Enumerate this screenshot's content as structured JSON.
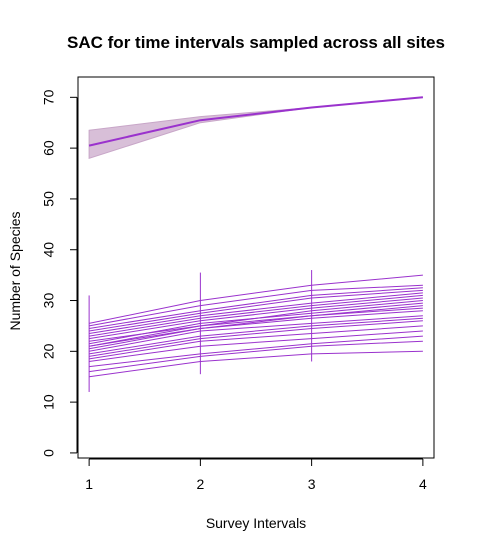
{
  "chart_data": {
    "type": "line",
    "title": "SAC for time intervals sampled across all sites",
    "xlabel": "Survey Intervals",
    "ylabel": "Number of Species",
    "xlim": [
      0.9,
      4.1
    ],
    "ylim": [
      -1,
      74
    ],
    "x": [
      1,
      2,
      3,
      4
    ],
    "x_ticks": [
      "1",
      "2",
      "3",
      "4"
    ],
    "y_ticks": [
      "0",
      "10",
      "20",
      "30",
      "40",
      "50",
      "60",
      "70"
    ],
    "y_tick_values": [
      0,
      10,
      20,
      30,
      40,
      50,
      60,
      70
    ],
    "grid": false,
    "colors": {
      "line": "#9A32CD",
      "band": "#D8BFD8",
      "band_edge": "#C8A6C8"
    },
    "main_series": {
      "values": [
        60.5,
        65.5,
        68,
        70
      ],
      "ci_lower": [
        58,
        65,
        68,
        70
      ],
      "ci_upper": [
        63.5,
        66.2,
        68,
        70
      ]
    },
    "site_series": [
      [
        15,
        18,
        19.5,
        20
      ],
      [
        16,
        19,
        21,
        22
      ],
      [
        17,
        19.5,
        21.5,
        23
      ],
      [
        18,
        21,
        22.5,
        24
      ],
      [
        18.5,
        22,
        23.5,
        25
      ],
      [
        19,
        22.5,
        24.5,
        26
      ],
      [
        19.5,
        23,
        25,
        26.5
      ],
      [
        20,
        24,
        25.5,
        27
      ],
      [
        20.5,
        24.5,
        26.5,
        28
      ],
      [
        21,
        25,
        27,
        28.5
      ],
      [
        21,
        24.5,
        27,
        29
      ],
      [
        21.5,
        25.5,
        27.5,
        29.5
      ],
      [
        22,
        25,
        28,
        30
      ],
      [
        22.5,
        26,
        28.5,
        30.5
      ],
      [
        23,
        26.5,
        29,
        31
      ],
      [
        23.5,
        27,
        29.5,
        31.5
      ],
      [
        24,
        27.5,
        30.5,
        32
      ],
      [
        24.5,
        28,
        31,
        32.5
      ],
      [
        25,
        29,
        32,
        33
      ],
      [
        25.5,
        30,
        33,
        35
      ]
    ],
    "error_bars": [
      {
        "x": 1,
        "lower": 12,
        "upper": 31
      },
      {
        "x": 2,
        "lower": 15.5,
        "upper": 35.5
      },
      {
        "x": 3,
        "lower": 18,
        "upper": 36
      }
    ]
  }
}
